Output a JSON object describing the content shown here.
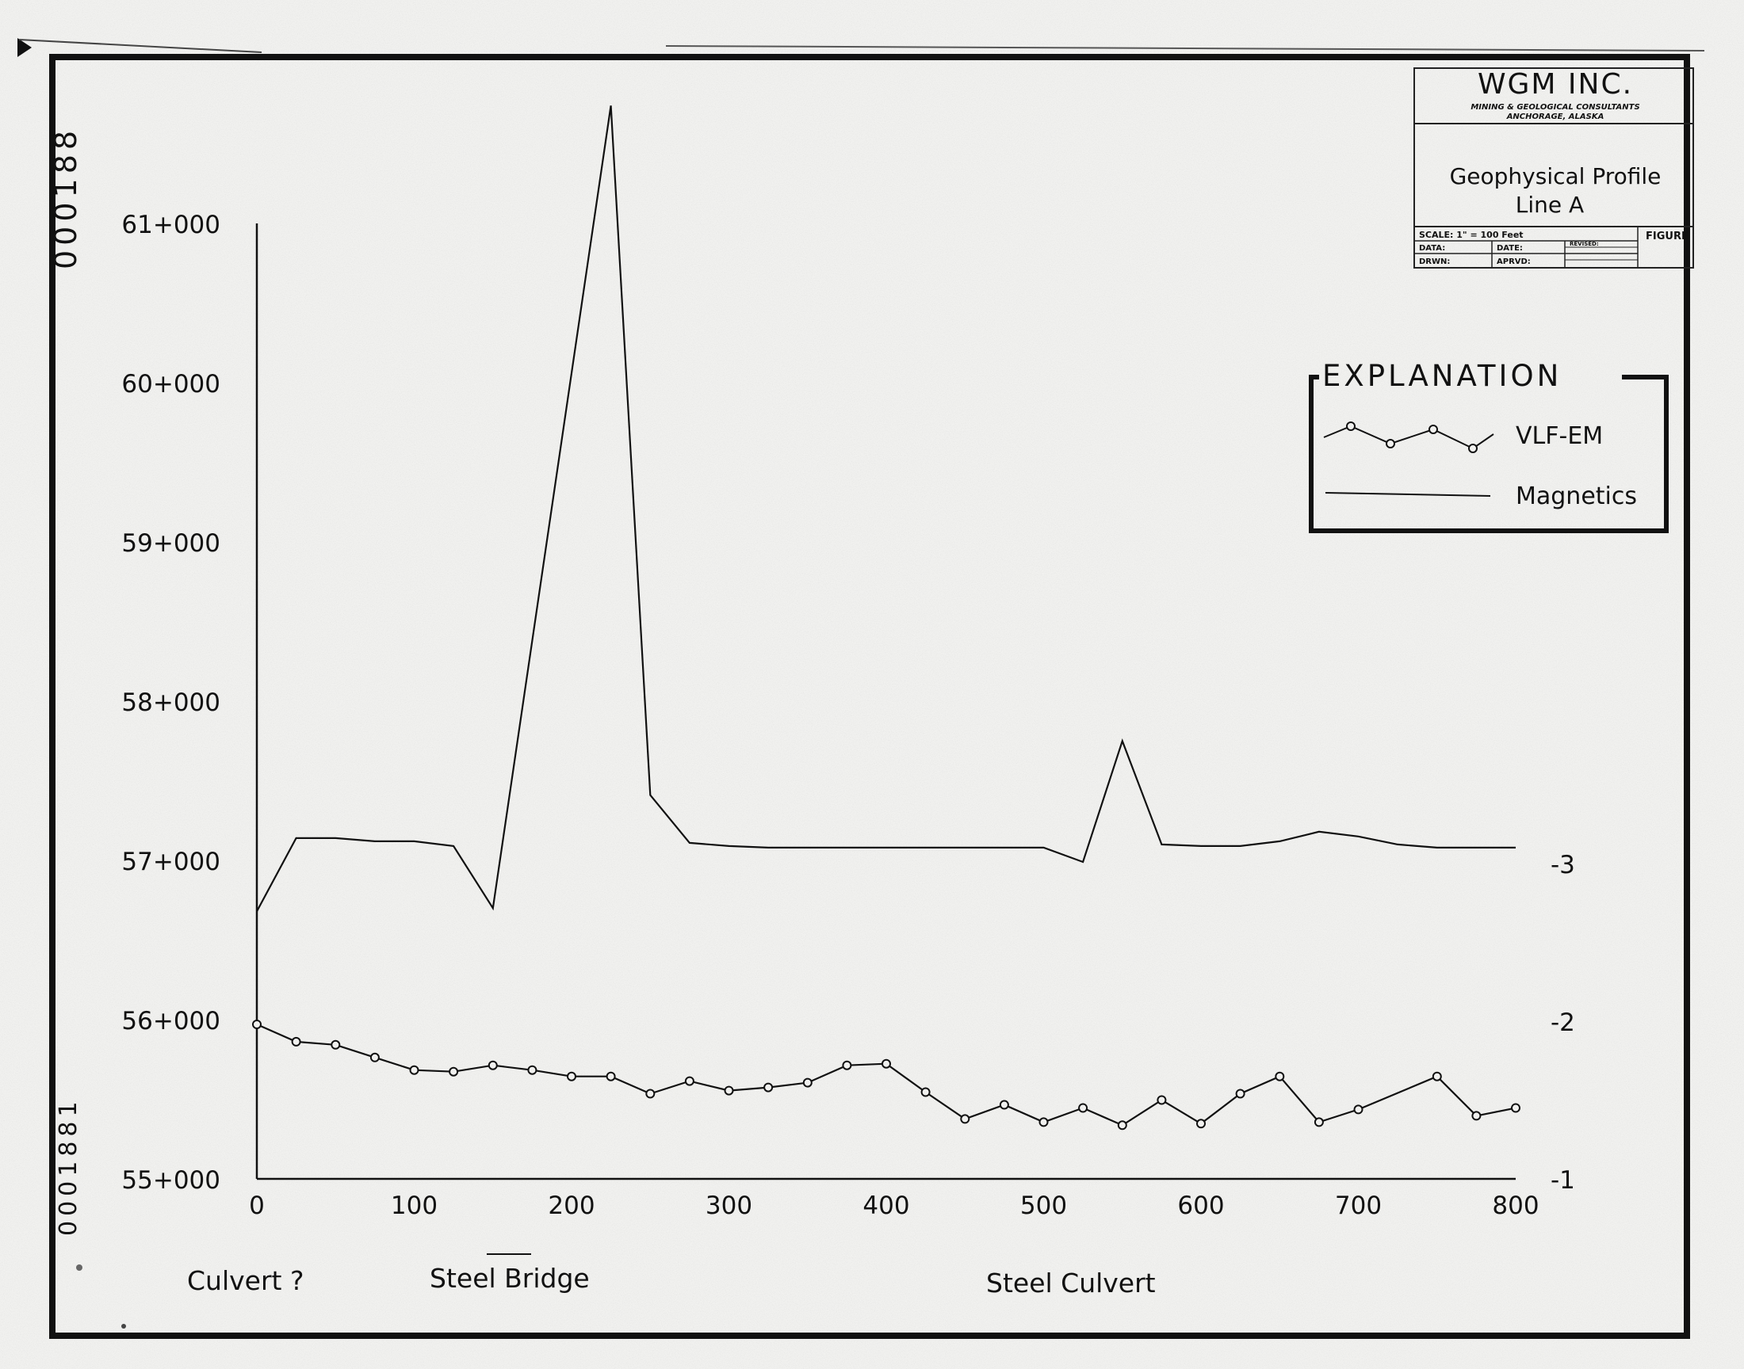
{
  "title_block": {
    "company": "WGM INC.",
    "company_sub1": "MINING & GEOLOGICAL CONSULTANTS",
    "company_sub2": "ANCHORAGE, ALASKA",
    "title_line1": "Geophysical Profile",
    "title_line2": "Line A",
    "scale": "SCALE: 1\" = 100 Feet",
    "figure": "FIGURE",
    "data": "DATA:",
    "date": "DATE:",
    "drwn": "DRWN:",
    "aprvd": "APRVD:",
    "revised": "REVISED:"
  },
  "side_stamp_top": "000188",
  "side_stamp_bottom": "0001881",
  "legend": {
    "title": "EXPLANATION",
    "vlf_label": "VLF-EM",
    "mag_label": "Magnetics"
  },
  "annotations": {
    "culvert": "Culvert ?",
    "steel_bridge": "Steel Bridge",
    "steel_culvert": "Steel Culvert"
  },
  "chart_data": {
    "type": "line",
    "title": "Geophysical Profile Line A",
    "x": {
      "min": 0,
      "max": 800,
      "ticks": [
        0,
        100,
        200,
        300,
        400,
        500,
        600,
        700,
        800
      ],
      "tick_labels": [
        "0",
        "100",
        "200",
        "300",
        "400",
        "500",
        "600",
        "700",
        "800"
      ]
    },
    "y_left": {
      "min": 55000,
      "max": 61000,
      "ticks": [
        55000,
        56000,
        57000,
        58000,
        59000,
        60000,
        61000
      ],
      "tick_labels": [
        "55+000",
        "56+000",
        "57+000",
        "58+000",
        "59+000",
        "60+000",
        "61+000"
      ]
    },
    "y_right": {
      "min": -1,
      "max": -3,
      "ticks": [
        -1,
        -2,
        -3
      ],
      "tick_labels": [
        "-1",
        "-2",
        "-3"
      ]
    },
    "grid": false,
    "legend_position": "top-right",
    "series": [
      {
        "name": "Magnetics",
        "axis": "left",
        "marker": "none",
        "x": [
          0,
          25,
          50,
          75,
          100,
          125,
          150,
          225,
          250,
          275,
          300,
          325,
          350,
          375,
          400,
          425,
          450,
          475,
          500,
          525,
          550,
          575,
          600,
          625,
          650,
          675,
          700,
          725,
          750,
          775,
          800
        ],
        "y": [
          56680,
          57140,
          57140,
          57120,
          57120,
          57090,
          56700,
          61740,
          57410,
          57110,
          57090,
          57080,
          57080,
          57080,
          57080,
          57080,
          57080,
          57080,
          57080,
          56990,
          57750,
          57100,
          57090,
          57090,
          57120,
          57180,
          57150,
          57100,
          57080,
          57080,
          57080
        ]
      },
      {
        "name": "VLF-EM",
        "axis": "right",
        "marker": "circle",
        "x": [
          0,
          25,
          50,
          75,
          100,
          125,
          150,
          175,
          200,
          225,
          250,
          275,
          300,
          325,
          350,
          375,
          400,
          425,
          450,
          475,
          500,
          525,
          550,
          575,
          600,
          625,
          650,
          675,
          700,
          750,
          775,
          800
        ],
        "y": [
          -1.98,
          -1.87,
          -1.85,
          -1.77,
          -1.69,
          -1.68,
          -1.72,
          -1.69,
          -1.65,
          -1.65,
          -1.54,
          -1.62,
          -1.56,
          -1.58,
          -1.61,
          -1.72,
          -1.73,
          -1.55,
          -1.38,
          -1.47,
          -1.36,
          -1.45,
          -1.34,
          -1.5,
          -1.35,
          -1.54,
          -1.65,
          -1.36,
          -1.44,
          -1.65,
          -1.4,
          -1.45
        ]
      }
    ]
  },
  "colors": {
    "paper": "#f1f1ef",
    "ink": "#111111"
  }
}
